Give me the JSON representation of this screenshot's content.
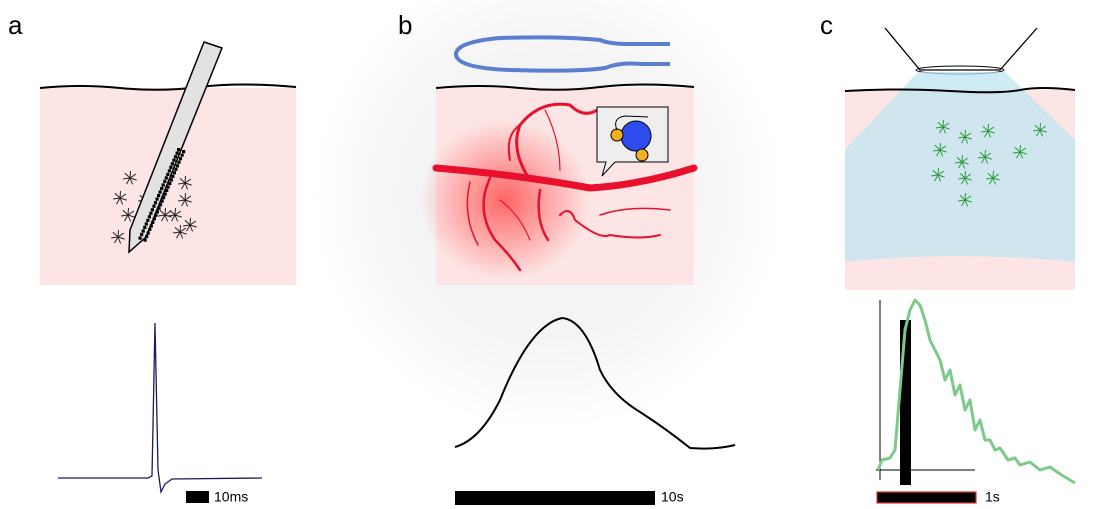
{
  "panels": [
    {
      "label": "a",
      "scale_bar": "10ms"
    },
    {
      "label": "b",
      "scale_bar": "10s"
    },
    {
      "label": "c",
      "scale_bar": "1s"
    }
  ]
}
